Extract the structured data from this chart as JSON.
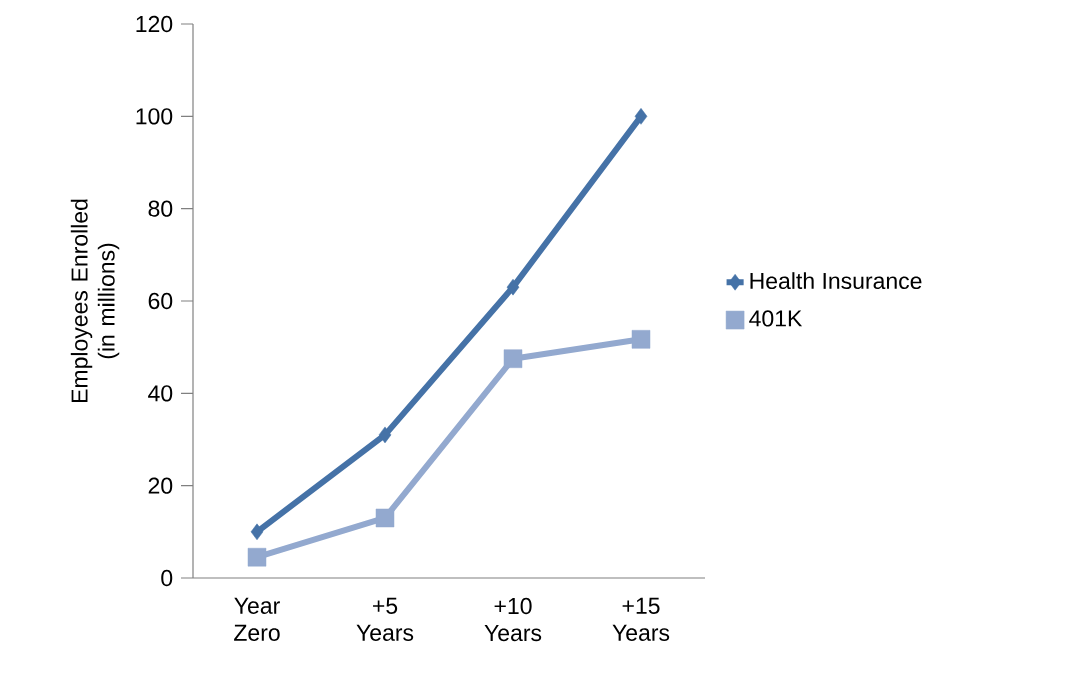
{
  "chart_data": {
    "type": "line",
    "ylabel": "Employees Enrolled (in millions)",
    "categories": [
      "Year Zero",
      "+5 Years",
      "+10 Years",
      "+15 Years"
    ],
    "series": [
      {
        "name": "Health Insurance",
        "color": "#4572a7",
        "marker": "diamond",
        "values": [
          10,
          31,
          63,
          100
        ]
      },
      {
        "name": "401K",
        "color": "#93a9cf",
        "marker": "square",
        "values": [
          4.5,
          13,
          47.5,
          51.7
        ]
      }
    ],
    "ylim": [
      0,
      120
    ],
    "yticks": [
      0,
      20,
      40,
      60,
      80,
      100,
      120
    ],
    "grid": false,
    "legend": "right",
    "line_style": "solid"
  }
}
